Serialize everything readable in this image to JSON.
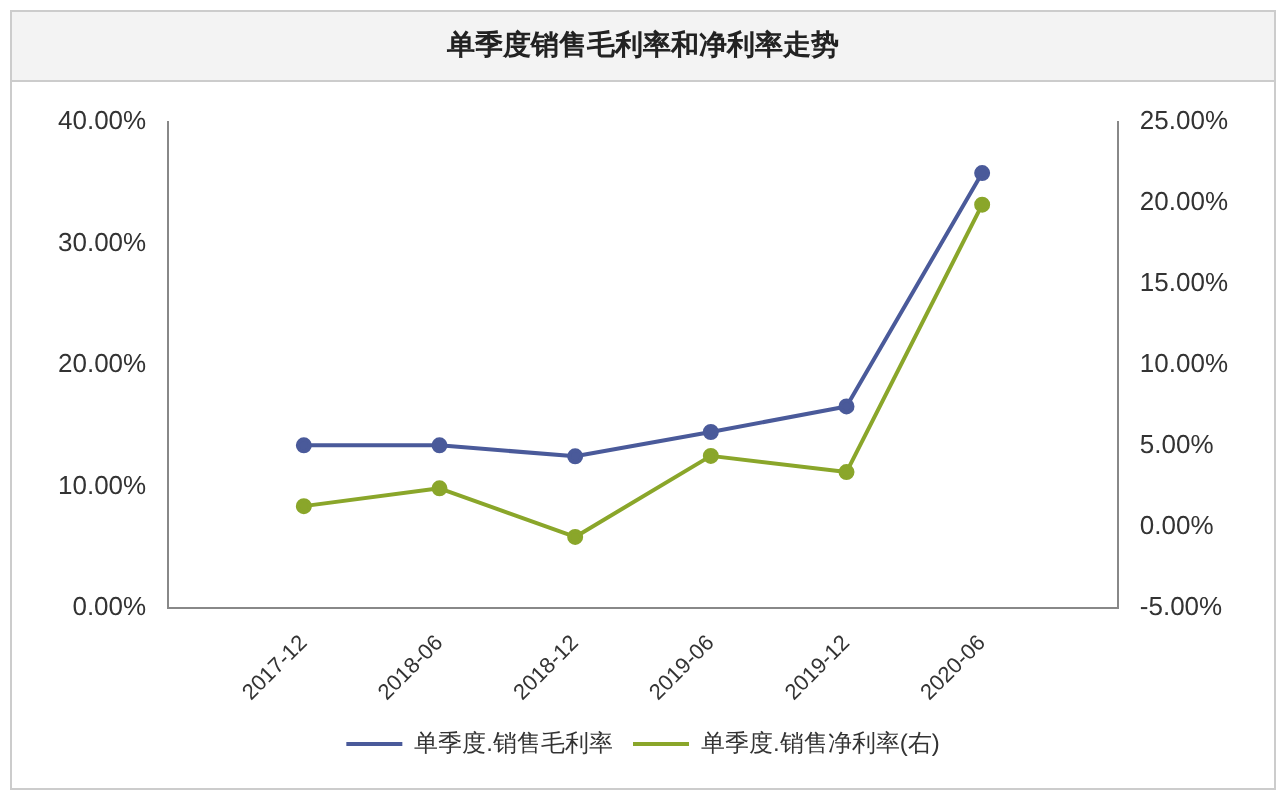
{
  "chart_data": {
    "type": "line",
    "title": "单季度销售毛利率和净利率走势",
    "categories": [
      "2017-12",
      "2018-06",
      "2018-12",
      "2019-06",
      "2019-12",
      "2020-06"
    ],
    "series": [
      {
        "name": "单季度.销售毛利率",
        "color": "#4a5a9a",
        "values": [
          13.4,
          13.4,
          12.5,
          14.5,
          16.6,
          35.8
        ]
      },
      {
        "name": "单季度.销售净利率(右)",
        "color": "#8aa62a",
        "axis": "y2",
        "values": [
          1.3,
          2.4,
          -0.6,
          4.4,
          3.4,
          19.9
        ]
      }
    ],
    "ylim": [
      0,
      40
    ],
    "yticks": [
      {
        "value": 0,
        "label": "0.00%"
      },
      {
        "value": 10,
        "label": "10.00%"
      },
      {
        "value": 20,
        "label": "20.00%"
      },
      {
        "value": 30,
        "label": "30.00%"
      },
      {
        "value": 40,
        "label": "40.00%"
      }
    ],
    "y2lim": [
      -5,
      25
    ],
    "y2ticks": [
      {
        "value": -5,
        "label": "-5.00%"
      },
      {
        "value": 0,
        "label": "0.00%"
      },
      {
        "value": 5,
        "label": "5.00%"
      },
      {
        "value": 10,
        "label": "10.00%"
      },
      {
        "value": 15,
        "label": "15.00%"
      },
      {
        "value": 20,
        "label": "20.00%"
      },
      {
        "value": 25,
        "label": "25.00%"
      }
    ],
    "grid": false,
    "legend": "bottom",
    "marker": "circle",
    "line_style": "solid"
  }
}
